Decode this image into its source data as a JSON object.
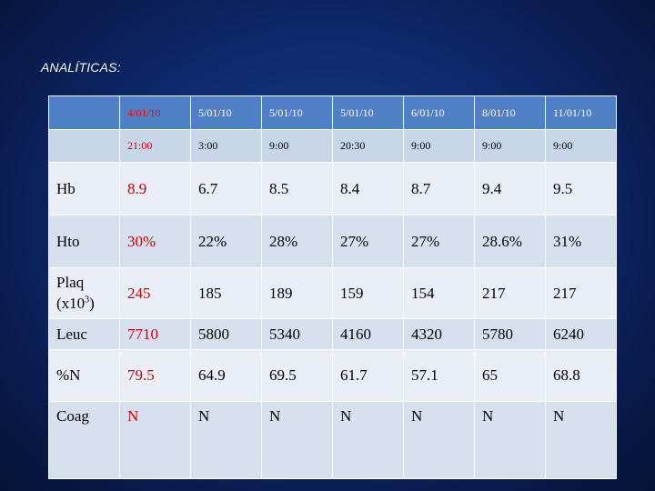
{
  "title": "ANALÍTICAS:",
  "header_dates": [
    "4/01/10",
    "5/01/10",
    "5/01/10",
    "5/01/10",
    "6/01/10",
    "8/01/10",
    "11/01/10"
  ],
  "header_times": [
    "21:00",
    "3:00",
    "9:00",
    "20:30",
    "9:00",
    "9:00",
    "9:00"
  ],
  "rows": [
    {
      "label": "Hb",
      "values": [
        "8.9",
        "6.7",
        "8.5",
        "8.4",
        "8.7",
        "9.4",
        "9.5"
      ]
    },
    {
      "label": "Hto",
      "values": [
        "30%",
        "22%",
        "28%",
        "27%",
        "27%",
        "28.6%",
        "31%"
      ]
    },
    {
      "label": "Plaq",
      "label_line2": "(x10",
      "label_sup": "3",
      "label_end": ")",
      "values": [
        "245",
        "185",
        "189",
        "159",
        "154",
        "217",
        "217"
      ]
    },
    {
      "label": "Leuc",
      "values": [
        "7710",
        "5800",
        "5340",
        "4160",
        "4320",
        "5780",
        "6240"
      ]
    },
    {
      "label": "%N",
      "values": [
        "79.5",
        "64.9",
        "69.5",
        "61.7",
        "57.1",
        "65",
        "68.8"
      ]
    },
    {
      "label": "Coag",
      "values": [
        "N",
        "N",
        "N",
        "N",
        "N",
        "N",
        "N"
      ]
    }
  ],
  "colors": {
    "highlight": "#cc0000",
    "header_bg": "#4f7fc4",
    "background": "#0f2a6e"
  }
}
